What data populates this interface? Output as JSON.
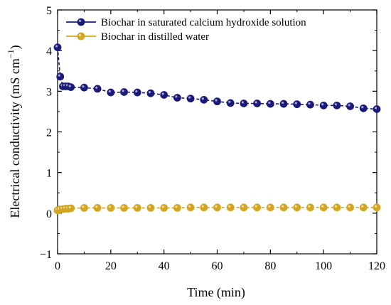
{
  "chart_data": {
    "type": "line",
    "xlabel": "Time (min)",
    "ylabel_main": "Electrical conductivity (mS cm",
    "ylabel_sup": "−1",
    "ylabel_close": ")",
    "xlim": [
      0,
      120
    ],
    "ylim": [
      -1,
      5
    ],
    "xticks": [
      0,
      20,
      40,
      60,
      80,
      100,
      120
    ],
    "yticks": [
      -1,
      0,
      1,
      2,
      3,
      4,
      5
    ],
    "ytick_labels": [
      "−1",
      "0",
      "1",
      "2",
      "3",
      "4",
      "5"
    ],
    "grid": false,
    "legend_position": "top-left",
    "series": [
      {
        "name": "Biochar in saturated calcium hydroxide solution",
        "color": "#1a1a7a",
        "marker": "circle",
        "x": [
          0,
          1,
          2,
          3,
          4,
          5,
          10,
          15,
          20,
          25,
          30,
          35,
          40,
          45,
          50,
          55,
          60,
          65,
          70,
          75,
          80,
          85,
          90,
          95,
          100,
          105,
          110,
          115,
          120
        ],
        "y": [
          4.08,
          3.36,
          3.12,
          3.12,
          3.12,
          3.1,
          3.09,
          3.06,
          2.97,
          2.98,
          2.97,
          2.95,
          2.91,
          2.84,
          2.82,
          2.79,
          2.75,
          2.71,
          2.7,
          2.7,
          2.69,
          2.69,
          2.68,
          2.67,
          2.65,
          2.65,
          2.63,
          2.58,
          2.56
        ]
      },
      {
        "name": "Biochar in distilled water",
        "color": "#d4a520",
        "marker": "circle",
        "x": [
          0,
          1,
          2,
          3,
          4,
          5,
          10,
          15,
          20,
          25,
          30,
          35,
          40,
          45,
          50,
          55,
          60,
          65,
          70,
          75,
          80,
          85,
          90,
          95,
          100,
          105,
          110,
          115,
          120
        ],
        "y": [
          0.07,
          0.09,
          0.1,
          0.11,
          0.11,
          0.12,
          0.13,
          0.13,
          0.13,
          0.13,
          0.13,
          0.13,
          0.13,
          0.13,
          0.14,
          0.14,
          0.14,
          0.14,
          0.14,
          0.14,
          0.14,
          0.14,
          0.14,
          0.14,
          0.14,
          0.14,
          0.14,
          0.14,
          0.14
        ]
      }
    ]
  }
}
